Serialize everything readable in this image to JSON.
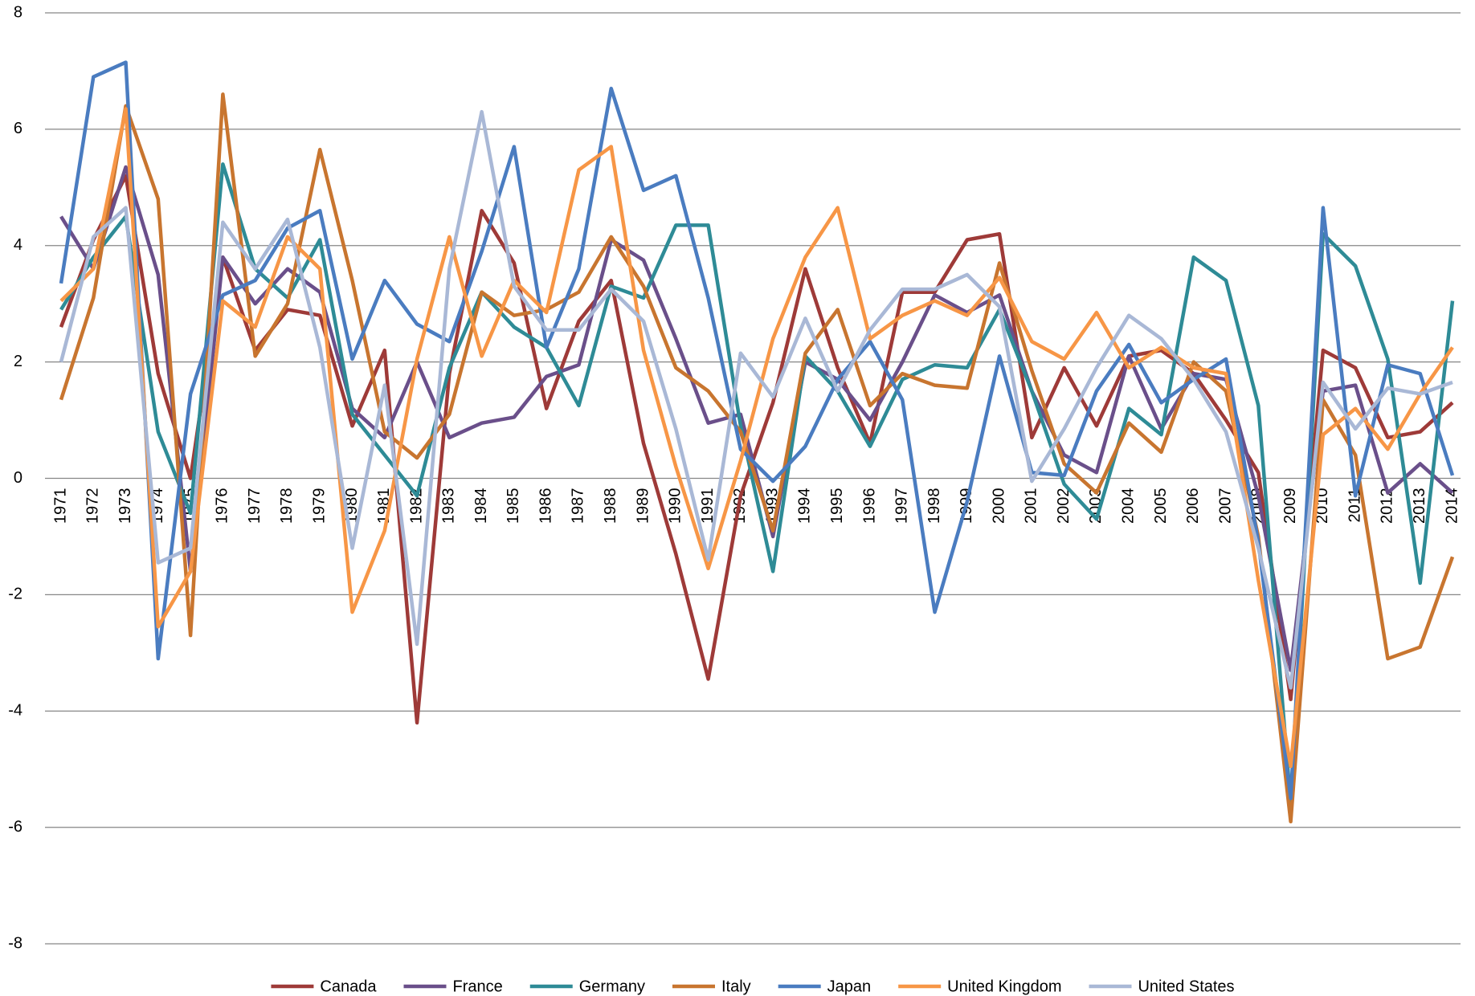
{
  "chart_data": {
    "type": "line",
    "categories": [
      "1971",
      "1972",
      "1973",
      "1974",
      "1975",
      "1976",
      "1977",
      "1978",
      "1979",
      "1980",
      "1981",
      "1982",
      "1983",
      "1984",
      "1985",
      "1986",
      "1987",
      "1988",
      "1989",
      "1990",
      "1991",
      "1992",
      "1993",
      "1994",
      "1995",
      "1996",
      "1997",
      "1998",
      "1999",
      "2000",
      "2001",
      "2002",
      "2003",
      "2004",
      "2005",
      "2006",
      "2007",
      "2008",
      "2009",
      "2010",
      "2011",
      "2012",
      "2013",
      "2014"
    ],
    "series": [
      {
        "name": "Canada",
        "color": "#9e3a38",
        "values": [
          2.6,
          4.1,
          5.2,
          1.8,
          0.0,
          3.8,
          2.2,
          2.9,
          2.8,
          0.9,
          2.2,
          -4.2,
          1.8,
          4.6,
          3.7,
          1.2,
          2.7,
          3.4,
          0.6,
          -1.3,
          -3.45,
          -0.3,
          1.3,
          3.6,
          1.9,
          0.6,
          3.2,
          3.2,
          4.1,
          4.2,
          0.7,
          1.9,
          0.9,
          2.1,
          2.2,
          1.8,
          1.0,
          0.1,
          -3.8,
          2.2,
          1.9,
          0.7,
          0.8,
          1.3
        ]
      },
      {
        "name": "France",
        "color": "#6a4f8a",
        "values": [
          4.5,
          3.6,
          5.35,
          3.5,
          -1.6,
          3.8,
          3.0,
          3.6,
          3.2,
          1.2,
          0.7,
          2.0,
          0.7,
          0.95,
          1.05,
          1.75,
          1.95,
          4.1,
          3.75,
          2.4,
          0.95,
          1.1,
          -1.0,
          2.0,
          1.7,
          1.0,
          2.0,
          3.15,
          2.85,
          3.15,
          1.5,
          0.4,
          0.1,
          2.1,
          0.85,
          1.8,
          1.7,
          -0.3,
          -3.3,
          1.5,
          1.6,
          -0.25,
          0.25,
          -0.25
        ]
      },
      {
        "name": "Germany",
        "color": "#2e8b96",
        "values": [
          2.9,
          3.8,
          4.5,
          0.8,
          -0.6,
          5.4,
          3.6,
          3.1,
          4.1,
          1.1,
          0.4,
          -0.3,
          1.9,
          3.2,
          2.6,
          2.25,
          1.25,
          3.3,
          3.1,
          4.35,
          4.35,
          0.9,
          -1.6,
          2.1,
          1.5,
          0.55,
          1.7,
          1.95,
          1.9,
          2.9,
          1.5,
          -0.1,
          -0.7,
          1.2,
          0.75,
          3.8,
          3.4,
          1.25,
          -5.6,
          4.2,
          3.65,
          2.05,
          -1.8,
          3.05
        ]
      },
      {
        "name": "Italy",
        "color": "#c8752f",
        "values": [
          1.35,
          3.1,
          6.4,
          4.8,
          -2.7,
          6.6,
          2.1,
          3.0,
          5.65,
          3.4,
          0.8,
          0.35,
          1.1,
          3.2,
          2.8,
          2.9,
          3.2,
          4.15,
          3.3,
          1.9,
          1.5,
          0.8,
          -0.9,
          2.15,
          2.9,
          1.25,
          1.8,
          1.6,
          1.55,
          3.7,
          1.85,
          0.25,
          -0.25,
          0.95,
          0.45,
          2.0,
          1.5,
          -1.0,
          -5.9,
          1.35,
          0.4,
          -3.1,
          -2.9,
          -1.35
        ]
      },
      {
        "name": "Japan",
        "color": "#4a7cc0",
        "values": [
          3.35,
          6.9,
          7.15,
          -3.1,
          1.45,
          3.15,
          3.4,
          4.3,
          4.6,
          2.05,
          3.4,
          2.65,
          2.35,
          3.9,
          5.7,
          2.25,
          3.6,
          6.7,
          4.95,
          5.2,
          3.1,
          0.5,
          -0.05,
          0.55,
          1.7,
          2.35,
          1.35,
          -2.3,
          -0.4,
          2.1,
          0.1,
          0.05,
          1.5,
          2.3,
          1.3,
          1.7,
          2.05,
          -1.1,
          -5.5,
          4.65,
          -0.3,
          1.95,
          1.8,
          0.05
        ]
      },
      {
        "name": "United Kingdom",
        "color": "#f79646",
        "values": [
          3.05,
          3.6,
          6.35,
          -2.55,
          -1.6,
          3.05,
          2.6,
          4.15,
          3.6,
          -2.3,
          -0.9,
          2.05,
          4.15,
          2.1,
          3.4,
          2.85,
          5.3,
          5.7,
          2.2,
          0.2,
          -1.55,
          0.3,
          2.4,
          3.8,
          4.65,
          2.4,
          2.8,
          3.05,
          2.8,
          3.45,
          2.35,
          2.05,
          2.85,
          1.9,
          2.25,
          1.9,
          1.8,
          -1.75,
          -4.95,
          0.75,
          1.2,
          0.5,
          1.45,
          2.25
        ]
      },
      {
        "name": "United States",
        "color": "#a9b8d6",
        "values": [
          2.0,
          4.15,
          4.65,
          -1.45,
          -1.2,
          4.4,
          3.6,
          4.45,
          2.25,
          -1.2,
          1.6,
          -2.85,
          3.6,
          6.3,
          3.3,
          2.55,
          2.55,
          3.25,
          2.7,
          0.85,
          -1.4,
          2.15,
          1.4,
          2.75,
          1.5,
          2.55,
          3.25,
          3.25,
          3.5,
          2.95,
          -0.05,
          0.85,
          1.9,
          2.8,
          2.4,
          1.7,
          0.8,
          -1.2,
          -3.6,
          1.65,
          0.85,
          1.55,
          1.45,
          1.65
        ]
      }
    ],
    "ylim": [
      -8,
      8
    ],
    "yticks": [
      -8,
      -6,
      -4,
      -2,
      0,
      2,
      4,
      6,
      8
    ],
    "grid": true,
    "legend": "bottom"
  }
}
